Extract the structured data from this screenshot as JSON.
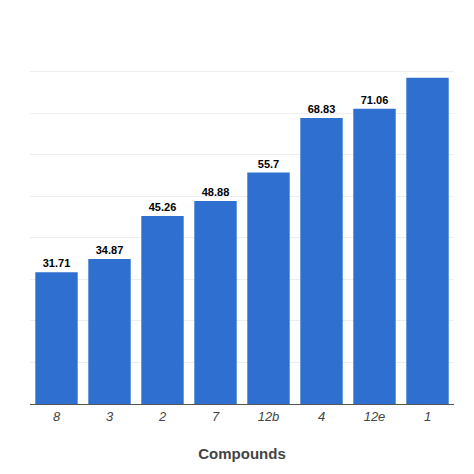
{
  "chart_data": {
    "type": "bar",
    "categories": [
      "8",
      "3",
      "2",
      "7",
      "12b",
      "4",
      "12e",
      "1"
    ],
    "values": [
      31.71,
      34.87,
      45.26,
      48.88,
      55.7,
      68.83,
      71.06,
      78.5
    ],
    "value_labels": [
      "31.71",
      "34.87",
      "45.26",
      "48.88",
      "55.7",
      "68.83",
      "71.06",
      null
    ],
    "data_labels": true,
    "color": "#2F6FD0",
    "xlabel": "Compounds",
    "ylim": [
      0,
      90
    ],
    "yticks": [
      0,
      10,
      20,
      30,
      40,
      50,
      60,
      70,
      80,
      90
    ],
    "grid": true,
    "tick_labels": "x"
  }
}
